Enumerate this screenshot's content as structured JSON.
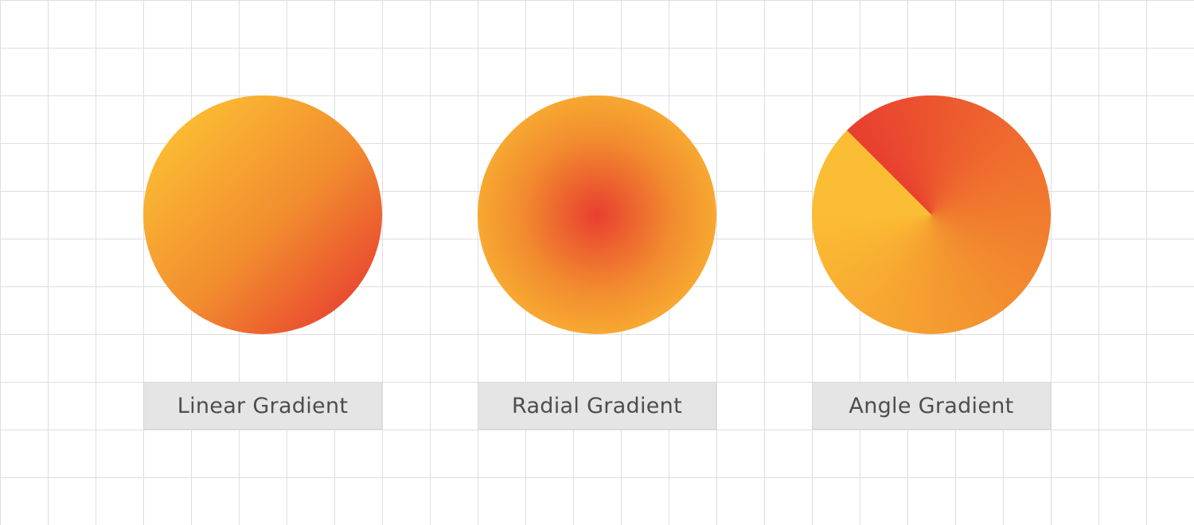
{
  "colors": {
    "yellow": "#fbbd33",
    "orange": "#f28c2f",
    "red": "#e83f2f",
    "grid_line": "#dedede",
    "caption_background": "#e5e5e5",
    "caption_text": "#4d4d4d"
  },
  "swatches": [
    {
      "name": "linear",
      "gradient_type": "linear",
      "label": "Linear Gradient"
    },
    {
      "name": "radial",
      "gradient_type": "radial",
      "label": "Radial Gradient"
    },
    {
      "name": "angle",
      "gradient_type": "angle",
      "label": "Angle Gradient"
    }
  ]
}
